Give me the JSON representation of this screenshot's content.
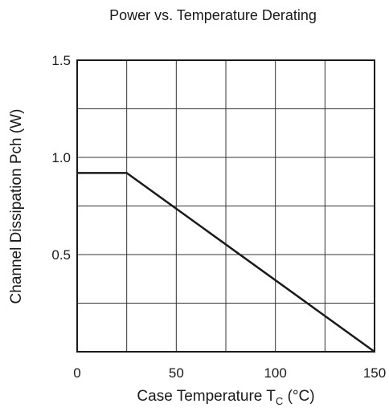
{
  "chart_data": {
    "type": "line",
    "title": "Power vs. Temperature Derating",
    "xlabel": {
      "prefix": "Case Temperature  T",
      "subscript": "C",
      "suffix": "  (°C)"
    },
    "ylabel": "Channel Dissipation  Pch  (W)",
    "xlim": [
      0,
      150
    ],
    "ylim": [
      0,
      1.5
    ],
    "x_ticks": [
      0,
      50,
      100,
      150
    ],
    "y_ticks": [
      0.5,
      1.0,
      1.5
    ],
    "x_tick_labels": [
      "0",
      "50",
      "100",
      "150"
    ],
    "y_tick_labels": [
      "0.5",
      "1.0",
      "1.5"
    ],
    "x_grid_step": 25,
    "y_grid_step": 0.25,
    "grid": true,
    "series": [
      {
        "x": [
          0,
          25,
          150
        ],
        "y": [
          0.92,
          0.92,
          0
        ]
      }
    ],
    "line_color": "#1a1a1a"
  }
}
